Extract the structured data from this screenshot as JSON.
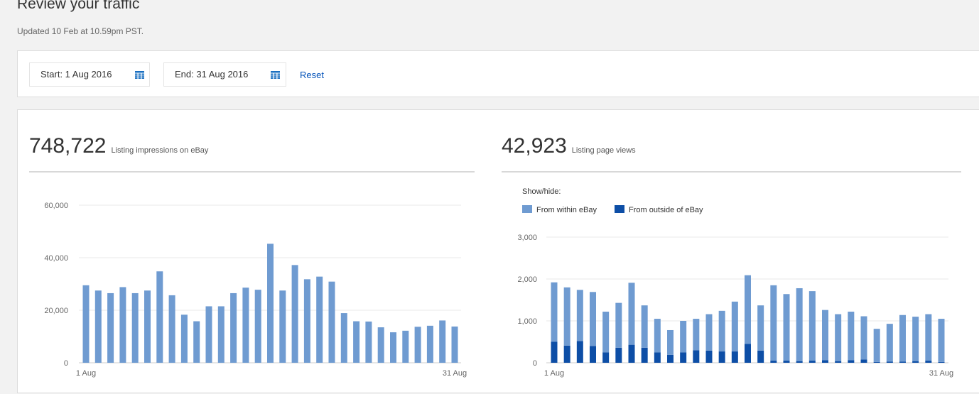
{
  "page": {
    "title": "Review your traffic",
    "updated": "Updated 10 Feb at 10.59pm PST."
  },
  "filters": {
    "start_label": "Start: 1 Aug 2016",
    "end_label": "End: 31 Aug 2016",
    "calendar_icon": "calendar-icon",
    "reset_label": "Reset"
  },
  "impressions": {
    "value": "748,722",
    "label": "Listing impressions on eBay"
  },
  "page_views": {
    "value": "42,923",
    "label": "Listing page views",
    "legend_title": "Show/hide:"
  },
  "colors": {
    "within": "#6f9bd1",
    "outside": "#0d4ea6",
    "impressions": "#6f9bd1",
    "grid": "#e8e8e8",
    "tick": "#666666"
  },
  "chart_data": [
    {
      "type": "bar",
      "x_tick_labels": [
        "1 Aug",
        "31 Aug"
      ],
      "y_ticks": [
        "0",
        "20,000",
        "40,000",
        "60,000"
      ],
      "ylim": [
        0,
        60000
      ],
      "grid": true,
      "x": [
        1,
        2,
        3,
        4,
        5,
        6,
        7,
        8,
        9,
        10,
        11,
        12,
        13,
        14,
        15,
        16,
        17,
        18,
        19,
        20,
        21,
        22,
        23,
        24,
        25,
        26,
        27,
        28,
        29,
        30,
        31
      ],
      "values": [
        29500,
        27500,
        26500,
        28800,
        26500,
        27500,
        34800,
        25700,
        18300,
        15800,
        21500,
        21500,
        26500,
        28600,
        27800,
        45300,
        27500,
        37200,
        31800,
        32800,
        30900,
        18900,
        15800,
        15700,
        13500,
        11600,
        12200,
        13700,
        14100,
        16100,
        13800
      ]
    },
    {
      "type": "bar",
      "stacked": true,
      "x_tick_labels": [
        "1 Aug",
        "31 Aug"
      ],
      "y_ticks": [
        "0",
        "1,000",
        "2,000",
        "3,000"
      ],
      "ylim": [
        0,
        3000
      ],
      "grid": true,
      "legend": "top-left",
      "x": [
        1,
        2,
        3,
        4,
        5,
        6,
        7,
        8,
        9,
        10,
        11,
        12,
        13,
        14,
        15,
        16,
        17,
        18,
        19,
        20,
        21,
        22,
        23,
        24,
        25,
        26,
        27,
        28,
        29,
        30,
        31
      ],
      "series": [
        {
          "name": "From outside of eBay",
          "values": [
            500,
            410,
            520,
            400,
            250,
            360,
            430,
            360,
            250,
            190,
            250,
            300,
            290,
            270,
            270,
            450,
            290,
            50,
            50,
            40,
            50,
            60,
            40,
            60,
            80,
            20,
            30,
            30,
            40,
            50,
            20
          ]
        },
        {
          "name": "From within eBay",
          "values": [
            1420,
            1390,
            1220,
            1290,
            970,
            1070,
            1480,
            1010,
            800,
            590,
            750,
            750,
            870,
            970,
            1190,
            1640,
            1080,
            1800,
            1590,
            1740,
            1660,
            1200,
            1120,
            1160,
            1030,
            790,
            900,
            1110,
            1060,
            1110,
            1030
          ]
        }
      ]
    }
  ]
}
